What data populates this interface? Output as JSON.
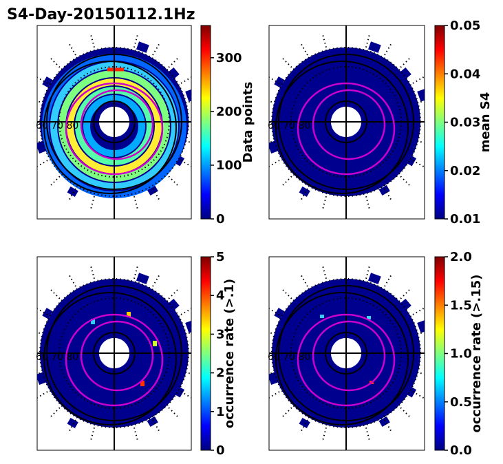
{
  "figure_title": "S4-Day-20150112.1Hz",
  "chart_data": [
    {
      "type": "heatmap",
      "projection": "polar",
      "panel": "top-left",
      "colorbar": {
        "label": "Data points",
        "min": 0,
        "max": 360,
        "ticks": [
          0,
          100,
          200,
          300
        ],
        "tick_labels": [
          "0",
          "100",
          "200",
          "300"
        ]
      },
      "ring_label": "60 70 80"
    },
    {
      "type": "heatmap",
      "projection": "polar",
      "panel": "top-right",
      "colorbar": {
        "label": "mean S4",
        "min": 0.01,
        "max": 0.05,
        "ticks": [
          0.01,
          0.02,
          0.03,
          0.04,
          0.05
        ],
        "tick_labels": [
          "0.01",
          "0.02",
          "0.03",
          "0.04",
          "0.05"
        ]
      },
      "ring_label": "60 70 80"
    },
    {
      "type": "heatmap",
      "projection": "polar",
      "panel": "bottom-left",
      "colorbar": {
        "label": "occurrence rate (>.1)",
        "min": 0,
        "max": 5,
        "ticks": [
          0,
          1,
          2,
          3,
          4,
          5
        ],
        "tick_labels": [
          "0",
          "1",
          "2",
          "3",
          "4",
          "5"
        ]
      },
      "ring_label": "60 70 80"
    },
    {
      "type": "heatmap",
      "projection": "polar",
      "panel": "bottom-right",
      "colorbar": {
        "label": "occurrence rate (>.15)",
        "min": 0,
        "max": 2,
        "ticks": [
          0,
          0.5,
          1,
          1.5,
          2
        ],
        "tick_labels": [
          "0.0",
          "0.5",
          "1.0",
          "1.5",
          "2.0"
        ]
      },
      "ring_label": "60 70 80"
    }
  ]
}
